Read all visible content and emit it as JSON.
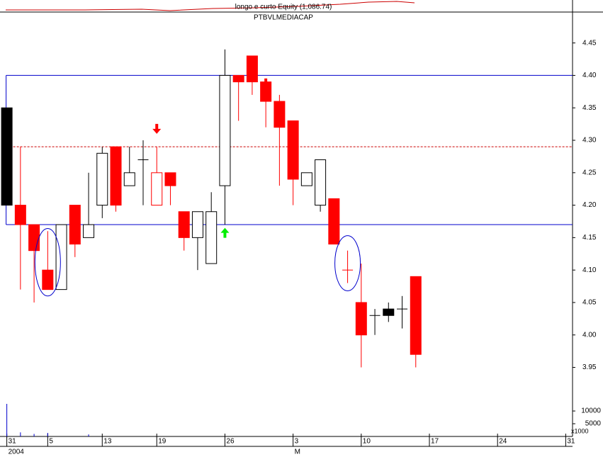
{
  "chart_data": {
    "type": "candlestick",
    "title": "longo e curto Equity (1,086.74)",
    "subtitle": "PTBVLMEDIACAP",
    "xlim": [
      -0.5,
      41.5
    ],
    "ylim": [
      3.92,
      4.49
    ],
    "yticks": [
      3.95,
      {
        "value": 4.0,
        "label": "4.00"
      },
      4.05,
      {
        "value": 4.1,
        "label": "4.10"
      },
      4.15,
      {
        "value": 4.2,
        "label": "4.20"
      },
      4.25,
      {
        "value": 4.3,
        "label": "4.30"
      },
      4.35,
      {
        "value": 4.4,
        "label": "4.40"
      },
      4.45
    ],
    "xticks": [
      {
        "value": 0,
        "label": "31"
      },
      {
        "value": 3,
        "label": "5"
      },
      {
        "value": 7,
        "label": "13"
      },
      {
        "value": 11,
        "label": "19"
      },
      {
        "value": 16,
        "label": "26"
      },
      {
        "value": 21,
        "label": "3"
      },
      {
        "value": 26,
        "label": "10"
      },
      {
        "value": 31,
        "label": "17"
      },
      {
        "value": 36,
        "label": "24"
      },
      {
        "value": 41,
        "label": "31"
      }
    ],
    "xticks2": [
      {
        "value": 0,
        "label": "2004"
      },
      {
        "value": 21,
        "label": "M"
      }
    ],
    "candles": [
      {
        "x": 0,
        "open": 4.35,
        "high": 4.35,
        "low": 4.2,
        "close": 4.2,
        "fill": "#000000",
        "stroke": "#000000"
      },
      {
        "x": 1,
        "open": 4.2,
        "high": 4.29,
        "low": 4.07,
        "close": 4.17,
        "fill": "#ff0000",
        "stroke": "#ff0000"
      },
      {
        "x": 2,
        "open": 4.17,
        "high": 4.17,
        "low": 4.05,
        "close": 4.13,
        "fill": "#ff0000",
        "stroke": "#ff0000"
      },
      {
        "x": 3,
        "open": 4.1,
        "high": 4.16,
        "low": 4.07,
        "close": 4.07,
        "fill": "#ff0000",
        "stroke": "#ff0000"
      },
      {
        "x": 4,
        "open": 4.07,
        "high": 4.17,
        "low": 4.07,
        "close": 4.17,
        "fill": "#ffffff",
        "stroke": "#000000"
      },
      {
        "x": 5,
        "open": 4.2,
        "high": 4.2,
        "low": 4.12,
        "close": 4.14,
        "fill": "#ff0000",
        "stroke": "#ff0000"
      },
      {
        "x": 6,
        "open": 4.15,
        "high": 4.25,
        "low": 4.15,
        "close": 4.17,
        "fill": "#ffffff",
        "stroke": "#000000"
      },
      {
        "x": 7,
        "open": 4.2,
        "high": 4.29,
        "low": 4.18,
        "close": 4.28,
        "fill": "#ffffff",
        "stroke": "#000000"
      },
      {
        "x": 8,
        "open": 4.29,
        "high": 4.29,
        "low": 4.19,
        "close": 4.2,
        "fill": "#ff0000",
        "stroke": "#ff0000"
      },
      {
        "x": 9,
        "open": 4.23,
        "high": 4.29,
        "low": 4.23,
        "close": 4.25,
        "fill": "#ffffff",
        "stroke": "#000000"
      },
      {
        "x": 10,
        "open": 4.27,
        "high": 4.3,
        "low": 4.2,
        "close": 4.27,
        "fill": "#000000",
        "stroke": "#000000"
      },
      {
        "x": 11,
        "open": 4.25,
        "high": 4.29,
        "low": 4.2,
        "close": 4.2,
        "fill": "#ffffff",
        "stroke": "#ff0000"
      },
      {
        "x": 12,
        "open": 4.25,
        "high": 4.25,
        "low": 4.2,
        "close": 4.23,
        "fill": "#ff0000",
        "stroke": "#ff0000"
      },
      {
        "x": 13,
        "open": 4.19,
        "high": 4.19,
        "low": 4.13,
        "close": 4.15,
        "fill": "#ff0000",
        "stroke": "#ff0000"
      },
      {
        "x": 14,
        "open": 4.15,
        "high": 4.19,
        "low": 4.1,
        "close": 4.19,
        "fill": "#ffffff",
        "stroke": "#000000"
      },
      {
        "x": 15,
        "open": 4.11,
        "high": 4.22,
        "low": 4.11,
        "close": 4.19,
        "fill": "#ffffff",
        "stroke": "#000000"
      },
      {
        "x": 16,
        "open": 4.23,
        "high": 4.44,
        "low": 4.17,
        "close": 4.4,
        "fill": "#ffffff",
        "stroke": "#000000"
      },
      {
        "x": 17,
        "open": 4.4,
        "high": 4.4,
        "low": 4.33,
        "close": 4.39,
        "fill": "#ff0000",
        "stroke": "#ff0000"
      },
      {
        "x": 18,
        "open": 4.43,
        "high": 4.43,
        "low": 4.37,
        "close": 4.39,
        "fill": "#ff0000",
        "stroke": "#ff0000"
      },
      {
        "x": 19,
        "open": 4.39,
        "high": 4.39,
        "low": 4.32,
        "close": 4.36,
        "fill": "#ff0000",
        "stroke": "#ff0000"
      },
      {
        "x": 20,
        "open": 4.36,
        "high": 4.37,
        "low": 4.23,
        "close": 4.32,
        "fill": "#ff0000",
        "stroke": "#ff0000"
      },
      {
        "x": 21,
        "open": 4.33,
        "high": 4.33,
        "low": 4.2,
        "close": 4.24,
        "fill": "#ff0000",
        "stroke": "#ff0000"
      },
      {
        "x": 22,
        "open": 4.23,
        "high": 4.25,
        "low": 4.23,
        "close": 4.25,
        "fill": "#ffffff",
        "stroke": "#000000"
      },
      {
        "x": 23,
        "open": 4.2,
        "high": 4.27,
        "low": 4.19,
        "close": 4.27,
        "fill": "#ffffff",
        "stroke": "#000000"
      },
      {
        "x": 24,
        "open": 4.21,
        "high": 4.21,
        "low": 4.14,
        "close": 4.14,
        "fill": "#ff0000",
        "stroke": "#ff0000"
      },
      {
        "x": 25,
        "open": 4.1,
        "high": 4.13,
        "low": 4.08,
        "close": 4.1,
        "fill": "#ff0000",
        "stroke": "#ff0000"
      },
      {
        "x": 26,
        "open": 4.05,
        "high": 4.11,
        "low": 3.95,
        "close": 4.0,
        "fill": "#ff0000",
        "stroke": "#ff0000"
      },
      {
        "x": 27,
        "open": 4.03,
        "high": 4.04,
        "low": 4.0,
        "close": 4.03,
        "fill": "#000000",
        "stroke": "#000000"
      },
      {
        "x": 28,
        "open": 4.04,
        "high": 4.05,
        "low": 4.02,
        "close": 4.03,
        "fill": "#000000",
        "stroke": "#000000"
      },
      {
        "x": 29,
        "open": 4.04,
        "high": 4.06,
        "low": 4.01,
        "close": 4.04,
        "fill": "#000000",
        "stroke": "#000000"
      },
      {
        "x": 30,
        "open": 4.09,
        "high": 4.09,
        "low": 3.95,
        "close": 3.97,
        "fill": "#ff0000",
        "stroke": "#ff0000"
      }
    ],
    "levels": [
      {
        "value": 4.4,
        "color": "#0000cc",
        "dashed": false
      },
      {
        "value": 4.17,
        "color": "#0000cc",
        "dashed": false
      },
      {
        "value": 4.29,
        "color": "#cc0000",
        "dashed": true
      }
    ],
    "arrows": [
      {
        "x": 11,
        "value": 4.31,
        "direction": "down",
        "color": "#ff0000"
      },
      {
        "x": 19,
        "value": 4.38,
        "direction": "down",
        "color": "#ff0000"
      },
      {
        "x": 16,
        "value": 4.165,
        "direction": "up",
        "color": "#00ee00"
      }
    ],
    "ellipses": [
      {
        "x": 3,
        "low": 4.06,
        "high": 4.164
      },
      {
        "x": 25,
        "low": 4.068,
        "high": 4.153
      }
    ],
    "volume": {
      "unit_label": "x1000",
      "ylim": [
        0,
        12800
      ],
      "yticks": [
        5000,
        10000
      ],
      "values": [
        12800,
        1600,
        1000,
        1400,
        0,
        0,
        800,
        0,
        0,
        0,
        0,
        0,
        0,
        0,
        0,
        0,
        0,
        0,
        0,
        0,
        0,
        0,
        0,
        0,
        0,
        0,
        0,
        0,
        0,
        0,
        0
      ]
    }
  }
}
